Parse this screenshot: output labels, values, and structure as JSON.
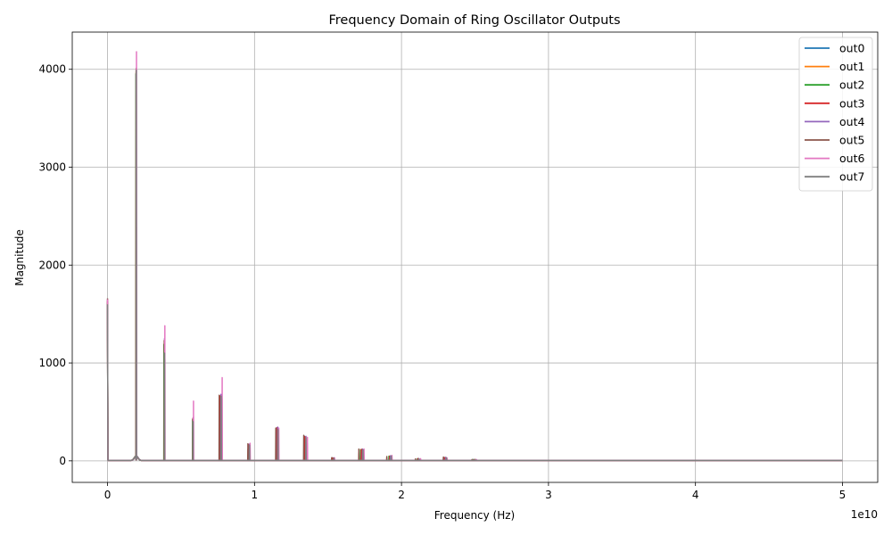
{
  "chart_data": {
    "type": "line",
    "title": "Frequency Domain of Ring Oscillator Outputs",
    "xlabel": "Frequency (Hz)",
    "ylabel": "Magnitude",
    "x_scale_label": "1e10",
    "xlim": [
      -2.4,
      52.4
    ],
    "ylim": [
      -220,
      4380
    ],
    "xticks": [
      0,
      10,
      20,
      30,
      40,
      50
    ],
    "xtick_labels": [
      "0",
      "1",
      "2",
      "3",
      "4",
      "5"
    ],
    "yticks": [
      0,
      1000,
      2000,
      3000,
      4000
    ],
    "ytick_labels": [
      "0",
      "1000",
      "2000",
      "3000",
      "4000"
    ],
    "x_units": "GHz (axis shows Hz ×1e10)",
    "grid": true,
    "legend_position": "top-right",
    "x_max": 50,
    "base_floor": 4,
    "series": [
      {
        "name": "out0",
        "color": "#1f77b4",
        "dc": 1600,
        "fundamental": 1.94,
        "peaks": [
          [
            1.94,
            3950
          ],
          [
            3.85,
            1180
          ],
          [
            5.8,
            420
          ],
          [
            7.68,
            650
          ],
          [
            9.6,
            150
          ],
          [
            11.52,
            330
          ],
          [
            13.4,
            250
          ],
          [
            15.3,
            30
          ],
          [
            17.25,
            110
          ],
          [
            19.18,
            45
          ],
          [
            21.1,
            20
          ],
          [
            22.9,
            35
          ],
          [
            24.9,
            10
          ]
        ]
      },
      {
        "name": "out1",
        "color": "#ff7f0e",
        "dc": 1620,
        "fundamental": 1.95,
        "peaks": [
          [
            1.95,
            3980
          ],
          [
            3.86,
            1200
          ],
          [
            5.82,
            430
          ],
          [
            7.7,
            660
          ],
          [
            9.62,
            160
          ],
          [
            11.55,
            340
          ],
          [
            13.45,
            240
          ],
          [
            15.35,
            28
          ],
          [
            17.3,
            115
          ],
          [
            19.22,
            50
          ],
          [
            21.15,
            22
          ],
          [
            22.95,
            32
          ],
          [
            25.0,
            12
          ]
        ]
      },
      {
        "name": "out2",
        "color": "#2ca02c",
        "dc": 1610,
        "fundamental": 1.94,
        "peaks": [
          [
            1.94,
            3960
          ],
          [
            3.84,
            1190
          ],
          [
            5.79,
            425
          ],
          [
            7.67,
            655
          ],
          [
            9.58,
            155
          ],
          [
            11.5,
            335
          ],
          [
            13.38,
            245
          ],
          [
            15.28,
            30
          ],
          [
            17.22,
            112
          ],
          [
            19.15,
            48
          ],
          [
            21.08,
            21
          ],
          [
            22.88,
            34
          ],
          [
            24.85,
            11
          ]
        ]
      },
      {
        "name": "out3",
        "color": "#d62728",
        "dc": 1630,
        "fundamental": 1.95,
        "peaks": [
          [
            1.95,
            3990
          ],
          [
            3.87,
            1210
          ],
          [
            5.81,
            435
          ],
          [
            7.69,
            665
          ],
          [
            9.61,
            165
          ],
          [
            11.53,
            338
          ],
          [
            13.42,
            248
          ],
          [
            15.33,
            29
          ],
          [
            17.27,
            118
          ],
          [
            19.2,
            47
          ],
          [
            21.12,
            23
          ],
          [
            22.92,
            33
          ],
          [
            24.95,
            12
          ]
        ]
      },
      {
        "name": "out4",
        "color": "#9467bd",
        "dc": 1640,
        "fundamental": 1.96,
        "peaks": [
          [
            1.96,
            4000
          ],
          [
            3.88,
            1250
          ],
          [
            5.83,
            440
          ],
          [
            7.72,
            680
          ],
          [
            9.65,
            170
          ],
          [
            11.58,
            345
          ],
          [
            13.5,
            250
          ],
          [
            15.4,
            32
          ],
          [
            17.35,
            120
          ],
          [
            19.25,
            52
          ],
          [
            21.18,
            24
          ],
          [
            23.0,
            36
          ],
          [
            25.05,
            13
          ]
        ]
      },
      {
        "name": "out5",
        "color": "#8c564b",
        "dc": 1660,
        "fundamental": 1.95,
        "peaks": [
          [
            1.95,
            4010
          ],
          [
            3.86,
            1230
          ],
          [
            5.8,
            420
          ],
          [
            7.6,
            670
          ],
          [
            9.55,
            175
          ],
          [
            11.45,
            335
          ],
          [
            13.35,
            260
          ],
          [
            15.25,
            33
          ],
          [
            17.1,
            120
          ],
          [
            19.0,
            44
          ],
          [
            20.95,
            20
          ],
          [
            22.85,
            38
          ],
          [
            24.8,
            12
          ]
        ]
      },
      {
        "name": "out6",
        "color": "#e377c2",
        "dc": 1650,
        "fundamental": 1.97,
        "peaks": [
          [
            1.97,
            4180
          ],
          [
            3.9,
            1380
          ],
          [
            5.85,
            610
          ],
          [
            7.8,
            850
          ],
          [
            9.7,
            180
          ],
          [
            11.65,
            335
          ],
          [
            13.6,
            240
          ],
          [
            15.45,
            30
          ],
          [
            17.45,
            120
          ],
          [
            19.35,
            55
          ],
          [
            21.3,
            22
          ],
          [
            23.1,
            30
          ],
          [
            25.1,
            10
          ]
        ]
      },
      {
        "name": "out7",
        "color": "#7f7f7f",
        "dc": 1600,
        "fundamental": 1.96,
        "peaks": [
          [
            1.96,
            3990
          ],
          [
            3.88,
            1100
          ],
          [
            5.82,
            400
          ],
          [
            7.74,
            660
          ],
          [
            9.66,
            160
          ],
          [
            11.6,
            320
          ],
          [
            13.5,
            235
          ],
          [
            15.4,
            28
          ],
          [
            17.38,
            115
          ],
          [
            19.3,
            50
          ],
          [
            21.2,
            20
          ],
          [
            23.05,
            33
          ],
          [
            25.0,
            11
          ]
        ]
      }
    ]
  }
}
